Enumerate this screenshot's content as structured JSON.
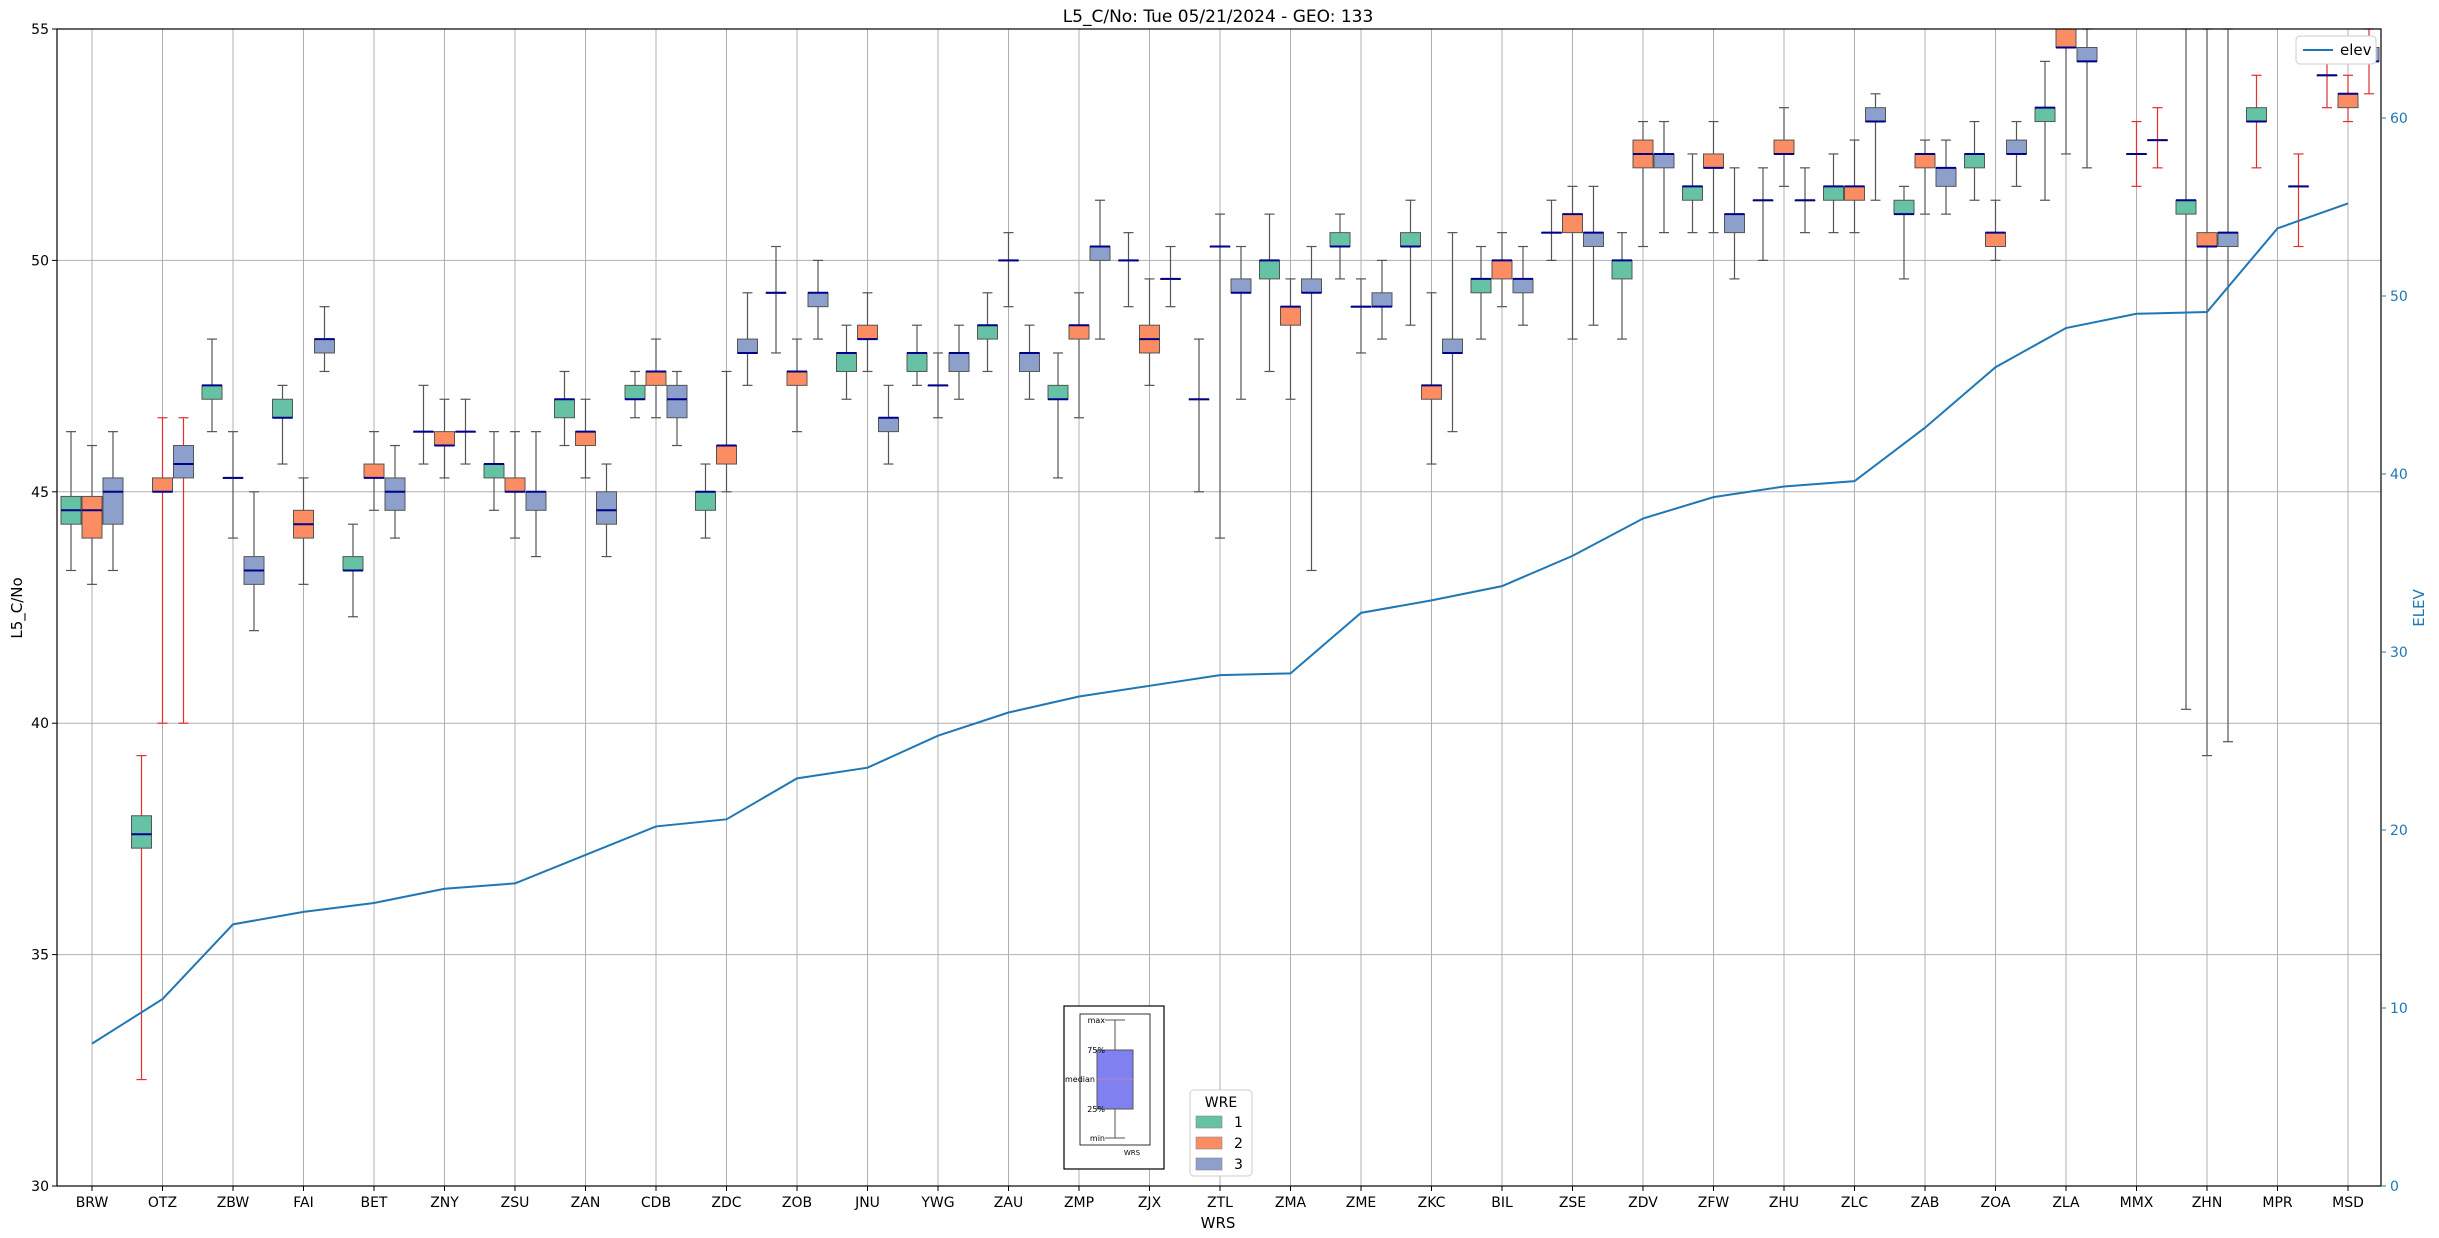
{
  "chart_data": {
    "type": "boxplot",
    "title": "L5_C/No: Tue 05/21/2024 - GEO: 133",
    "xlabel": "WRS",
    "ylabel": "L5_C/No",
    "y2label": "ELEV",
    "ylim": [
      30,
      55
    ],
    "y2lim": [
      0,
      65
    ],
    "yticks": [
      30,
      35,
      40,
      45,
      50,
      55
    ],
    "y2ticks": [
      0,
      10,
      20,
      30,
      40,
      50,
      60
    ],
    "grid": true,
    "categories": [
      "BRW",
      "OTZ",
      "ZBW",
      "FAI",
      "BET",
      "ZNY",
      "ZSU",
      "ZAN",
      "CDB",
      "ZDC",
      "ZOB",
      "JNU",
      "YWG",
      "ZAU",
      "ZMP",
      "ZJX",
      "ZTL",
      "ZMA",
      "ZME",
      "ZKC",
      "BIL",
      "ZSE",
      "ZDV",
      "ZFW",
      "ZHU",
      "ZLC",
      "ZAB",
      "ZOA",
      "ZLA",
      "MMX",
      "ZHN",
      "MPR",
      "MSD"
    ],
    "elev": {
      "name": "elev",
      "color": "#1f77b4",
      "values": [
        8,
        10.5,
        14.7,
        15.4,
        15.9,
        16.7,
        17,
        18.6,
        20.2,
        20.6,
        22.9,
        23.5,
        25.3,
        26.6,
        27.5,
        28.1,
        28.7,
        28.8,
        32.2,
        32.9,
        33.7,
        35.4,
        37.5,
        38.7,
        39.3,
        39.6,
        42.6,
        46,
        48.2,
        49,
        49.1,
        53.8,
        55.2
      ]
    },
    "legend_wre": {
      "title": "WRE",
      "items": [
        {
          "label": "1",
          "color": "#66c2a5"
        },
        {
          "label": "2",
          "color": "#fc8d62"
        },
        {
          "label": "3",
          "color": "#8da0cb"
        }
      ]
    },
    "box_key": {
      "labels": [
        "max",
        "75%",
        "median",
        "25%",
        "min"
      ],
      "xlabel": "WRS"
    },
    "boxes": [
      {
        "wrs": "BRW",
        "wre": 1,
        "min": 43.3,
        "q1": 44.3,
        "median": 44.6,
        "q3": 44.9,
        "max": 46.3
      },
      {
        "wrs": "BRW",
        "wre": 2,
        "min": 43,
        "q1": 44,
        "median": 44.6,
        "q3": 44.9,
        "max": 46
      },
      {
        "wrs": "BRW",
        "wre": 3,
        "min": 43.3,
        "q1": 44.3,
        "median": 45,
        "q3": 45.3,
        "max": 46.3
      },
      {
        "wrs": "OTZ",
        "wre": 1,
        "min": 32.3,
        "q1": 37.3,
        "median": 37.6,
        "q3": 38,
        "max": 39.3,
        "red": true
      },
      {
        "wrs": "OTZ",
        "wre": 2,
        "min": 40,
        "q1": 45,
        "median": 45,
        "q3": 45.3,
        "max": 46.6,
        "red": true
      },
      {
        "wrs": "OTZ",
        "wre": 3,
        "min": 40,
        "q1": 45.3,
        "median": 45.6,
        "q3": 46,
        "max": 46.6,
        "red": true
      },
      {
        "wrs": "ZBW",
        "wre": 1,
        "min": 46.3,
        "q1": 47,
        "median": 47.3,
        "q3": 47.3,
        "max": 48.3
      },
      {
        "wrs": "ZBW",
        "wre": 2,
        "min": 44,
        "q1": 45.3,
        "median": 45.3,
        "q3": 45.3,
        "max": 46.3
      },
      {
        "wrs": "ZBW",
        "wre": 3,
        "min": 42,
        "q1": 43,
        "median": 43.3,
        "q3": 43.6,
        "max": 45
      },
      {
        "wrs": "FAI",
        "wre": 1,
        "min": 45.6,
        "q1": 46.6,
        "median": 46.6,
        "q3": 47,
        "max": 47.3
      },
      {
        "wrs": "FAI",
        "wre": 2,
        "min": 43,
        "q1": 44,
        "median": 44.3,
        "q3": 44.6,
        "max": 45.3
      },
      {
        "wrs": "FAI",
        "wre": 3,
        "min": 47.6,
        "q1": 48,
        "median": 48.3,
        "q3": 48.3,
        "max": 49
      },
      {
        "wrs": "BET",
        "wre": 1,
        "min": 42.3,
        "q1": 43.3,
        "median": 43.3,
        "q3": 43.6,
        "max": 44.3
      },
      {
        "wrs": "BET",
        "wre": 2,
        "min": 44.6,
        "q1": 45.3,
        "median": 45.3,
        "q3": 45.6,
        "max": 46.3
      },
      {
        "wrs": "BET",
        "wre": 3,
        "min": 44,
        "q1": 44.6,
        "median": 45,
        "q3": 45.3,
        "max": 46
      },
      {
        "wrs": "ZNY",
        "wre": 1,
        "min": 45.6,
        "q1": 46.3,
        "median": 46.3,
        "q3": 46.3,
        "max": 47.3
      },
      {
        "wrs": "ZNY",
        "wre": 2,
        "min": 45.3,
        "q1": 46,
        "median": 46,
        "q3": 46.3,
        "max": 47
      },
      {
        "wrs": "ZNY",
        "wre": 3,
        "min": 45.6,
        "q1": 46.3,
        "median": 46.3,
        "q3": 46.3,
        "max": 47
      },
      {
        "wrs": "ZSU",
        "wre": 1,
        "min": 44.6,
        "q1": 45.3,
        "median": 45.6,
        "q3": 45.6,
        "max": 46.3
      },
      {
        "wrs": "ZSU",
        "wre": 2,
        "min": 44,
        "q1": 45,
        "median": 45,
        "q3": 45.3,
        "max": 46.3
      },
      {
        "wrs": "ZSU",
        "wre": 3,
        "min": 43.6,
        "q1": 44.6,
        "median": 45,
        "q3": 45,
        "max": 46.3
      },
      {
        "wrs": "ZAN",
        "wre": 1,
        "min": 46,
        "q1": 46.6,
        "median": 47,
        "q3": 47,
        "max": 47.6
      },
      {
        "wrs": "ZAN",
        "wre": 2,
        "min": 45.3,
        "q1": 46,
        "median": 46.3,
        "q3": 46.3,
        "max": 47
      },
      {
        "wrs": "ZAN",
        "wre": 3,
        "min": 43.6,
        "q1": 44.3,
        "median": 44.6,
        "q3": 45,
        "max": 45.6
      },
      {
        "wrs": "CDB",
        "wre": 1,
        "min": 46.6,
        "q1": 47,
        "median": 47,
        "q3": 47.3,
        "max": 47.6
      },
      {
        "wrs": "CDB",
        "wre": 2,
        "min": 46.6,
        "q1": 47.3,
        "median": 47.6,
        "q3": 47.6,
        "max": 48.3
      },
      {
        "wrs": "CDB",
        "wre": 3,
        "min": 46,
        "q1": 46.6,
        "median": 47,
        "q3": 47.3,
        "max": 47.6
      },
      {
        "wrs": "ZDC",
        "wre": 1,
        "min": 44,
        "q1": 44.6,
        "median": 45,
        "q3": 45,
        "max": 45.6
      },
      {
        "wrs": "ZDC",
        "wre": 2,
        "min": 45,
        "q1": 45.6,
        "median": 46,
        "q3": 46,
        "max": 47.6
      },
      {
        "wrs": "ZDC",
        "wre": 3,
        "min": 47.3,
        "q1": 48,
        "median": 48,
        "q3": 48.3,
        "max": 49.3
      },
      {
        "wrs": "ZOB",
        "wre": 1,
        "min": 48,
        "q1": 49.3,
        "median": 49.3,
        "q3": 49.3,
        "max": 50.3
      },
      {
        "wrs": "ZOB",
        "wre": 2,
        "min": 46.3,
        "q1": 47.3,
        "median": 47.6,
        "q3": 47.6,
        "max": 48.3
      },
      {
        "wrs": "ZOB",
        "wre": 3,
        "min": 48.3,
        "q1": 49,
        "median": 49.3,
        "q3": 49.3,
        "max": 50
      },
      {
        "wrs": "JNU",
        "wre": 1,
        "min": 47,
        "q1": 47.6,
        "median": 48,
        "q3": 48,
        "max": 48.6
      },
      {
        "wrs": "JNU",
        "wre": 2,
        "min": 47.6,
        "q1": 48.3,
        "median": 48.3,
        "q3": 48.6,
        "max": 49.3
      },
      {
        "wrs": "JNU",
        "wre": 3,
        "min": 45.6,
        "q1": 46.3,
        "median": 46.6,
        "q3": 46.6,
        "max": 47.3
      },
      {
        "wrs": "YWG",
        "wre": 1,
        "min": 47.3,
        "q1": 47.6,
        "median": 48,
        "q3": 48,
        "max": 48.6
      },
      {
        "wrs": "YWG",
        "wre": 2,
        "min": 46.6,
        "q1": 47.3,
        "median": 47.3,
        "q3": 47.3,
        "max": 48
      },
      {
        "wrs": "YWG",
        "wre": 3,
        "min": 47,
        "q1": 47.6,
        "median": 48,
        "q3": 48,
        "max": 48.6
      },
      {
        "wrs": "ZAU",
        "wre": 1,
        "min": 47.6,
        "q1": 48.3,
        "median": 48.6,
        "q3": 48.6,
        "max": 49.3
      },
      {
        "wrs": "ZAU",
        "wre": 2,
        "min": 49,
        "q1": 50,
        "median": 50,
        "q3": 50,
        "max": 50.6
      },
      {
        "wrs": "ZAU",
        "wre": 3,
        "min": 47,
        "q1": 47.6,
        "median": 48,
        "q3": 48,
        "max": 48.6
      },
      {
        "wrs": "ZMP",
        "wre": 1,
        "min": 45.3,
        "q1": 47,
        "median": 47,
        "q3": 47.3,
        "max": 48
      },
      {
        "wrs": "ZMP",
        "wre": 2,
        "min": 46.6,
        "q1": 48.3,
        "median": 48.6,
        "q3": 48.6,
        "max": 49.3
      },
      {
        "wrs": "ZMP",
        "wre": 3,
        "min": 48.3,
        "q1": 50,
        "median": 50.3,
        "q3": 50.3,
        "max": 51.3
      },
      {
        "wrs": "ZJX",
        "wre": 1,
        "min": 49,
        "q1": 50,
        "median": 50,
        "q3": 50,
        "max": 50.6
      },
      {
        "wrs": "ZJX",
        "wre": 2,
        "min": 47.3,
        "q1": 48,
        "median": 48.3,
        "q3": 48.6,
        "max": 49.6
      },
      {
        "wrs": "ZJX",
        "wre": 3,
        "min": 49,
        "q1": 49.6,
        "median": 49.6,
        "q3": 49.6,
        "max": 50.3
      },
      {
        "wrs": "ZTL",
        "wre": 1,
        "min": 45,
        "q1": 47,
        "median": 47,
        "q3": 47,
        "max": 48.3
      },
      {
        "wrs": "ZTL",
        "wre": 2,
        "min": 44,
        "q1": 50.3,
        "median": 50.3,
        "q3": 50.3,
        "max": 51
      },
      {
        "wrs": "ZTL",
        "wre": 3,
        "min": 47,
        "q1": 49.3,
        "median": 49.3,
        "q3": 49.6,
        "max": 50.3
      },
      {
        "wrs": "ZMA",
        "wre": 1,
        "min": 47.6,
        "q1": 49.6,
        "median": 50,
        "q3": 50,
        "max": 51
      },
      {
        "wrs": "ZMA",
        "wre": 2,
        "min": 47,
        "q1": 48.6,
        "median": 49,
        "q3": 49,
        "max": 49.6
      },
      {
        "wrs": "ZMA",
        "wre": 3,
        "min": 43.3,
        "q1": 49.3,
        "median": 49.3,
        "q3": 49.6,
        "max": 50.3
      },
      {
        "wrs": "ZME",
        "wre": 1,
        "min": 49.6,
        "q1": 50.3,
        "median": 50.3,
        "q3": 50.6,
        "max": 51
      },
      {
        "wrs": "ZME",
        "wre": 2,
        "min": 48,
        "q1": 49,
        "median": 49,
        "q3": 49,
        "max": 49.6
      },
      {
        "wrs": "ZME",
        "wre": 3,
        "min": 48.3,
        "q1": 49,
        "median": 49,
        "q3": 49.3,
        "max": 50
      },
      {
        "wrs": "ZKC",
        "wre": 1,
        "min": 48.6,
        "q1": 50.3,
        "median": 50.3,
        "q3": 50.6,
        "max": 51.3
      },
      {
        "wrs": "ZKC",
        "wre": 2,
        "min": 45.6,
        "q1": 47,
        "median": 47.3,
        "q3": 47.3,
        "max": 49.3
      },
      {
        "wrs": "ZKC",
        "wre": 3,
        "min": 46.3,
        "q1": 48,
        "median": 48,
        "q3": 48.3,
        "max": 50.6
      },
      {
        "wrs": "BIL",
        "wre": 1,
        "min": 48.3,
        "q1": 49.3,
        "median": 49.6,
        "q3": 49.6,
        "max": 50.3
      },
      {
        "wrs": "BIL",
        "wre": 2,
        "min": 49,
        "q1": 49.6,
        "median": 50,
        "q3": 50,
        "max": 50.6
      },
      {
        "wrs": "BIL",
        "wre": 3,
        "min": 48.6,
        "q1": 49.3,
        "median": 49.6,
        "q3": 49.6,
        "max": 50.3
      },
      {
        "wrs": "ZSE",
        "wre": 1,
        "min": 50,
        "q1": 50.6,
        "median": 50.6,
        "q3": 50.6,
        "max": 51.3
      },
      {
        "wrs": "ZSE",
        "wre": 2,
        "min": 48.3,
        "q1": 50.6,
        "median": 51,
        "q3": 51,
        "max": 51.6
      },
      {
        "wrs": "ZSE",
        "wre": 3,
        "min": 48.6,
        "q1": 50.3,
        "median": 50.6,
        "q3": 50.6,
        "max": 51.6
      },
      {
        "wrs": "ZDV",
        "wre": 1,
        "min": 48.3,
        "q1": 49.6,
        "median": 50,
        "q3": 50,
        "max": 50.6
      },
      {
        "wrs": "ZDV",
        "wre": 2,
        "min": 50.3,
        "q1": 52,
        "median": 52.3,
        "q3": 52.6,
        "max": 53
      },
      {
        "wrs": "ZDV",
        "wre": 3,
        "min": 50.6,
        "q1": 52,
        "median": 52.3,
        "q3": 52.3,
        "max": 53
      },
      {
        "wrs": "ZFW",
        "wre": 1,
        "min": 50.6,
        "q1": 51.3,
        "median": 51.6,
        "q3": 51.6,
        "max": 52.3
      },
      {
        "wrs": "ZFW",
        "wre": 2,
        "min": 50.6,
        "q1": 52,
        "median": 52,
        "q3": 52.3,
        "max": 53
      },
      {
        "wrs": "ZFW",
        "wre": 3,
        "min": 49.6,
        "q1": 50.6,
        "median": 51,
        "q3": 51,
        "max": 52
      },
      {
        "wrs": "ZHU",
        "wre": 1,
        "min": 50,
        "q1": 51.3,
        "median": 51.3,
        "q3": 51.3,
        "max": 52
      },
      {
        "wrs": "ZHU",
        "wre": 2,
        "min": 51.6,
        "q1": 52.3,
        "median": 52.3,
        "q3": 52.6,
        "max": 53.3
      },
      {
        "wrs": "ZHU",
        "wre": 3,
        "min": 50.6,
        "q1": 51.3,
        "median": 51.3,
        "q3": 51.3,
        "max": 52
      },
      {
        "wrs": "ZLC",
        "wre": 1,
        "min": 50.6,
        "q1": 51.3,
        "median": 51.6,
        "q3": 51.6,
        "max": 52.3
      },
      {
        "wrs": "ZLC",
        "wre": 2,
        "min": 50.6,
        "q1": 51.3,
        "median": 51.6,
        "q3": 51.6,
        "max": 52.6
      },
      {
        "wrs": "ZLC",
        "wre": 3,
        "min": 51.3,
        "q1": 53,
        "median": 53,
        "q3": 53.3,
        "max": 53.6
      },
      {
        "wrs": "ZAB",
        "wre": 1,
        "min": 49.6,
        "q1": 51,
        "median": 51,
        "q3": 51.3,
        "max": 51.6
      },
      {
        "wrs": "ZAB",
        "wre": 2,
        "min": 51,
        "q1": 52,
        "median": 52.3,
        "q3": 52.3,
        "max": 52.6
      },
      {
        "wrs": "ZAB",
        "wre": 3,
        "min": 51,
        "q1": 51.6,
        "median": 52,
        "q3": 52,
        "max": 52.6
      },
      {
        "wrs": "ZOA",
        "wre": 1,
        "min": 51.3,
        "q1": 52,
        "median": 52.3,
        "q3": 52.3,
        "max": 53
      },
      {
        "wrs": "ZOA",
        "wre": 2,
        "min": 50,
        "q1": 50.3,
        "median": 50.6,
        "q3": 50.6,
        "max": 51.3
      },
      {
        "wrs": "ZOA",
        "wre": 3,
        "min": 51.6,
        "q1": 52.3,
        "median": 52.3,
        "q3": 52.6,
        "max": 53
      },
      {
        "wrs": "ZLA",
        "wre": 1,
        "min": 51.3,
        "q1": 53,
        "median": 53.3,
        "q3": 53.3,
        "max": 54.3
      },
      {
        "wrs": "ZLA",
        "wre": 2,
        "min": 52.3,
        "q1": 54.6,
        "median": 54.6,
        "q3": 55,
        "max": 55
      },
      {
        "wrs": "ZLA",
        "wre": 3,
        "min": 52,
        "q1": 54.3,
        "median": 54.3,
        "q3": 54.6,
        "max": 55
      },
      {
        "wrs": "MMX",
        "wre": 2,
        "min": 51.6,
        "q1": 52.3,
        "median": 52.3,
        "q3": 52.3,
        "max": 53,
        "red": true
      },
      {
        "wrs": "MMX",
        "wre": 3,
        "min": 52,
        "q1": 52.6,
        "median": 52.6,
        "q3": 52.6,
        "max": 53.3,
        "red": true
      },
      {
        "wrs": "ZHN",
        "wre": 1,
        "min": 40.3,
        "q1": 51,
        "median": 51.3,
        "q3": 51.3,
        "max": 55
      },
      {
        "wrs": "ZHN",
        "wre": 2,
        "min": 39.3,
        "q1": 50.3,
        "median": 50.3,
        "q3": 50.6,
        "max": 55
      },
      {
        "wrs": "ZHN",
        "wre": 3,
        "min": 39.6,
        "q1": 50.3,
        "median": 50.6,
        "q3": 50.6,
        "max": 55
      },
      {
        "wrs": "MPR",
        "wre": 1,
        "min": 52,
        "q1": 53,
        "median": 53,
        "q3": 53.3,
        "max": 54,
        "red": true
      },
      {
        "wrs": "MPR",
        "wre": 3,
        "min": 50.3,
        "q1": 51.6,
        "median": 51.6,
        "q3": 51.6,
        "max": 52.3,
        "red": true
      },
      {
        "wrs": "MSD",
        "wre": 1,
        "min": 53.3,
        "q1": 54,
        "median": 54,
        "q3": 54,
        "max": 54.6,
        "red": true
      },
      {
        "wrs": "MSD",
        "wre": 2,
        "min": 53,
        "q1": 53.3,
        "median": 53.6,
        "q3": 53.6,
        "max": 54,
        "red": true
      },
      {
        "wrs": "MSD",
        "wre": 3,
        "min": 53.6,
        "q1": 54.3,
        "median": 54.3,
        "q3": 54.6,
        "max": 55,
        "red": true
      }
    ]
  }
}
